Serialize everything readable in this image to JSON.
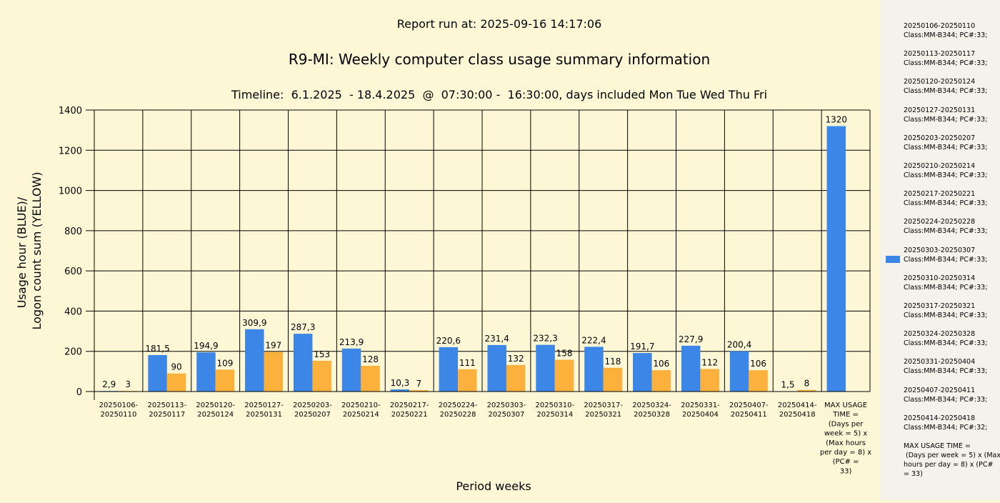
{
  "report_run_label": "Report run at: 2025-09-16 14:17:06",
  "colors": {
    "usage": "#3b86e6",
    "logon": "#fbb13c",
    "background": "#fef7d6",
    "legend_background": "#f4f2ea"
  },
  "chart_data": {
    "type": "bar",
    "title": "R9-MI: Weekly computer class usage summary information",
    "subtitle": "Timeline:  6.1.2025  - 18.4.2025  @  07:30:00 -  16:30:00, days included Mon Tue Wed Thu Fri",
    "xlabel": "Period weeks",
    "ylabel": [
      "Usage hour (BLUE)/",
      "Logon count sum (YELLOW)"
    ],
    "ylim": [
      0,
      1400
    ],
    "yticks": [
      "0",
      "200",
      "400",
      "600",
      "800",
      "1000",
      "1200",
      "1400"
    ],
    "grid": true,
    "categories": [
      [
        "20250106-",
        "20250110"
      ],
      [
        "20250113-",
        "20250117"
      ],
      [
        "20250120-",
        "20250124"
      ],
      [
        "20250127-",
        "20250131"
      ],
      [
        "20250203-",
        "20250207"
      ],
      [
        "20250210-",
        "20250214"
      ],
      [
        "20250217-",
        "20250221"
      ],
      [
        "20250224-",
        "20250228"
      ],
      [
        "20250303-",
        "20250307"
      ],
      [
        "20250310-",
        "20250314"
      ],
      [
        "20250317-",
        "20250321"
      ],
      [
        "20250324-",
        "20250328"
      ],
      [
        "20250331-",
        "20250404"
      ],
      [
        "20250407-",
        "20250411"
      ],
      [
        "20250414-",
        "20250418"
      ],
      [
        "MAX USAGE",
        "TIME =",
        "(Days per",
        "week = 5) x",
        "(Max hours",
        "per day = 8) x",
        "(PC# =",
        "33)"
      ]
    ],
    "series": [
      {
        "color": "#3b86e6",
        "values": [
          2.9,
          181.5,
          194.9,
          309.9,
          287.3,
          213.9,
          10.3,
          220.6,
          231.4,
          232.3,
          222.4,
          191.7,
          227.9,
          200.4,
          1.5,
          1320
        ],
        "labels": [
          "2,9",
          "181,5",
          "194,9",
          "309,9",
          "287,3",
          "213,9",
          "10,3",
          "220,6",
          "231,4",
          "232,3",
          "222,4",
          "191,7",
          "227,9",
          "200,4",
          "1,5",
          "1320"
        ]
      },
      {
        "color": "#fbb13c",
        "values": [
          3,
          90,
          109,
          197,
          153,
          128,
          7,
          111,
          132,
          158,
          118,
          106,
          112,
          106,
          8,
          null
        ],
        "labels": [
          "3",
          "90",
          "109",
          "197",
          "153",
          "128",
          "7",
          "111",
          "132",
          "158",
          "118",
          "106",
          "112",
          "106",
          "8",
          ""
        ]
      }
    ]
  },
  "legend": {
    "swatch_color": "#3b86e6",
    "swatch_entry_index": 8,
    "entries": [
      [
        "20250106-20250110",
        "Class:MM-B344; PC#:33;"
      ],
      [
        "20250113-20250117",
        "Class:MM-B344; PC#:33;"
      ],
      [
        "20250120-20250124",
        "Class:MM-B344; PC#:33;"
      ],
      [
        "20250127-20250131",
        "Class:MM-B344; PC#:33;"
      ],
      [
        "20250203-20250207",
        "Class:MM-B344; PC#:33;"
      ],
      [
        "20250210-20250214",
        "Class:MM-B344; PC#:33;"
      ],
      [
        "20250217-20250221",
        "Class:MM-B344; PC#:33;"
      ],
      [
        "20250224-20250228",
        "Class:MM-B344; PC#:33;"
      ],
      [
        "20250303-20250307",
        "Class:MM-B344; PC#:33;"
      ],
      [
        "20250310-20250314",
        "Class:MM-B344; PC#:33;"
      ],
      [
        "20250317-20250321",
        "Class:MM-B344; PC#:33;"
      ],
      [
        "20250324-20250328",
        "Class:MM-B344; PC#:33;"
      ],
      [
        "20250331-20250404",
        "Class:MM-B344; PC#:33;"
      ],
      [
        "20250407-20250411",
        "Class:MM-B344; PC#:33;"
      ],
      [
        "20250414-20250418",
        "Class:MM-B344; PC#:32;"
      ],
      [
        "MAX USAGE TIME =",
        " (Days per week = 5) x (Max",
        "hours per day = 8) x (PC#",
        "= 33)"
      ]
    ]
  }
}
